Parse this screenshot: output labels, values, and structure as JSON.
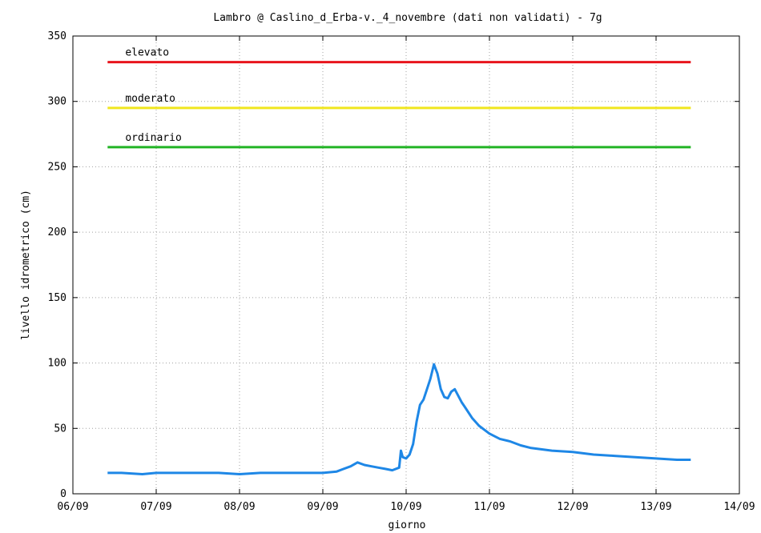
{
  "chart_data": {
    "type": "line",
    "title": "Lambro @  Caslino_d_Erba-v._4_novembre (dati non validati) - 7g",
    "xlabel": "giorno",
    "ylabel": "livello idrometrico (cm)",
    "xlim": [
      "06/09",
      "14/09"
    ],
    "ylim": [
      0,
      350
    ],
    "grid": true,
    "x_ticks": [
      "06/09",
      "07/09",
      "08/09",
      "09/09",
      "10/09",
      "11/09",
      "12/09",
      "13/09",
      "14/09"
    ],
    "y_ticks": [
      0,
      50,
      100,
      150,
      200,
      250,
      300,
      350
    ],
    "thresholds": [
      {
        "name": "elevato",
        "value": 330,
        "color": "#e8141c"
      },
      {
        "name": "moderato",
        "value": 295,
        "color": "#f0e61e"
      },
      {
        "name": "ordinario",
        "value": 265,
        "color": "#22b425"
      }
    ],
    "threshold_span": [
      "06/09 10:00",
      "13/09 10:00"
    ],
    "series": [
      {
        "color": "#1e87e6",
        "x": [
          "06/09 10:00",
          "06/09 14:00",
          "06/09 20:00",
          "07/09 00:00",
          "07/09 06:00",
          "07/09 12:00",
          "07/09 18:00",
          "08/09 00:00",
          "08/09 06:00",
          "08/09 12:00",
          "08/09 18:00",
          "09/09 00:00",
          "09/09 04:00",
          "09/09 06:00",
          "09/09 08:00",
          "09/09 10:00",
          "09/09 12:00",
          "09/09 14:00",
          "09/09 16:00",
          "09/09 18:00",
          "09/09 20:00",
          "09/09 22:00",
          "09/09 22:30",
          "09/09 23:00",
          "10/09 00:00",
          "10/09 01:00",
          "10/09 02:00",
          "10/09 03:00",
          "10/09 04:00",
          "10/09 05:00",
          "10/09 06:00",
          "10/09 07:00",
          "10/09 08:00",
          "10/09 09:00",
          "10/09 10:00",
          "10/09 11:00",
          "10/09 12:00",
          "10/09 13:00",
          "10/09 14:00",
          "10/09 15:00",
          "10/09 16:00",
          "10/09 17:00",
          "10/09 19:00",
          "10/09 21:00",
          "11/09 00:00",
          "11/09 03:00",
          "11/09 06:00",
          "11/09 09:00",
          "11/09 12:00",
          "11/09 18:00",
          "12/09 00:00",
          "12/09 06:00",
          "12/09 12:00",
          "12/09 18:00",
          "13/09 00:00",
          "13/09 06:00",
          "13/09 10:00"
        ],
        "y": [
          16,
          16,
          15,
          16,
          16,
          16,
          16,
          15,
          16,
          16,
          16,
          16,
          17,
          19,
          21,
          24,
          22,
          21,
          20,
          19,
          18,
          20,
          33,
          28,
          27,
          30,
          38,
          55,
          68,
          72,
          80,
          88,
          99,
          92,
          80,
          74,
          73,
          78,
          80,
          75,
          70,
          66,
          58,
          52,
          46,
          42,
          40,
          37,
          35,
          33,
          32,
          30,
          29,
          28,
          27,
          26,
          26
        ]
      }
    ]
  }
}
